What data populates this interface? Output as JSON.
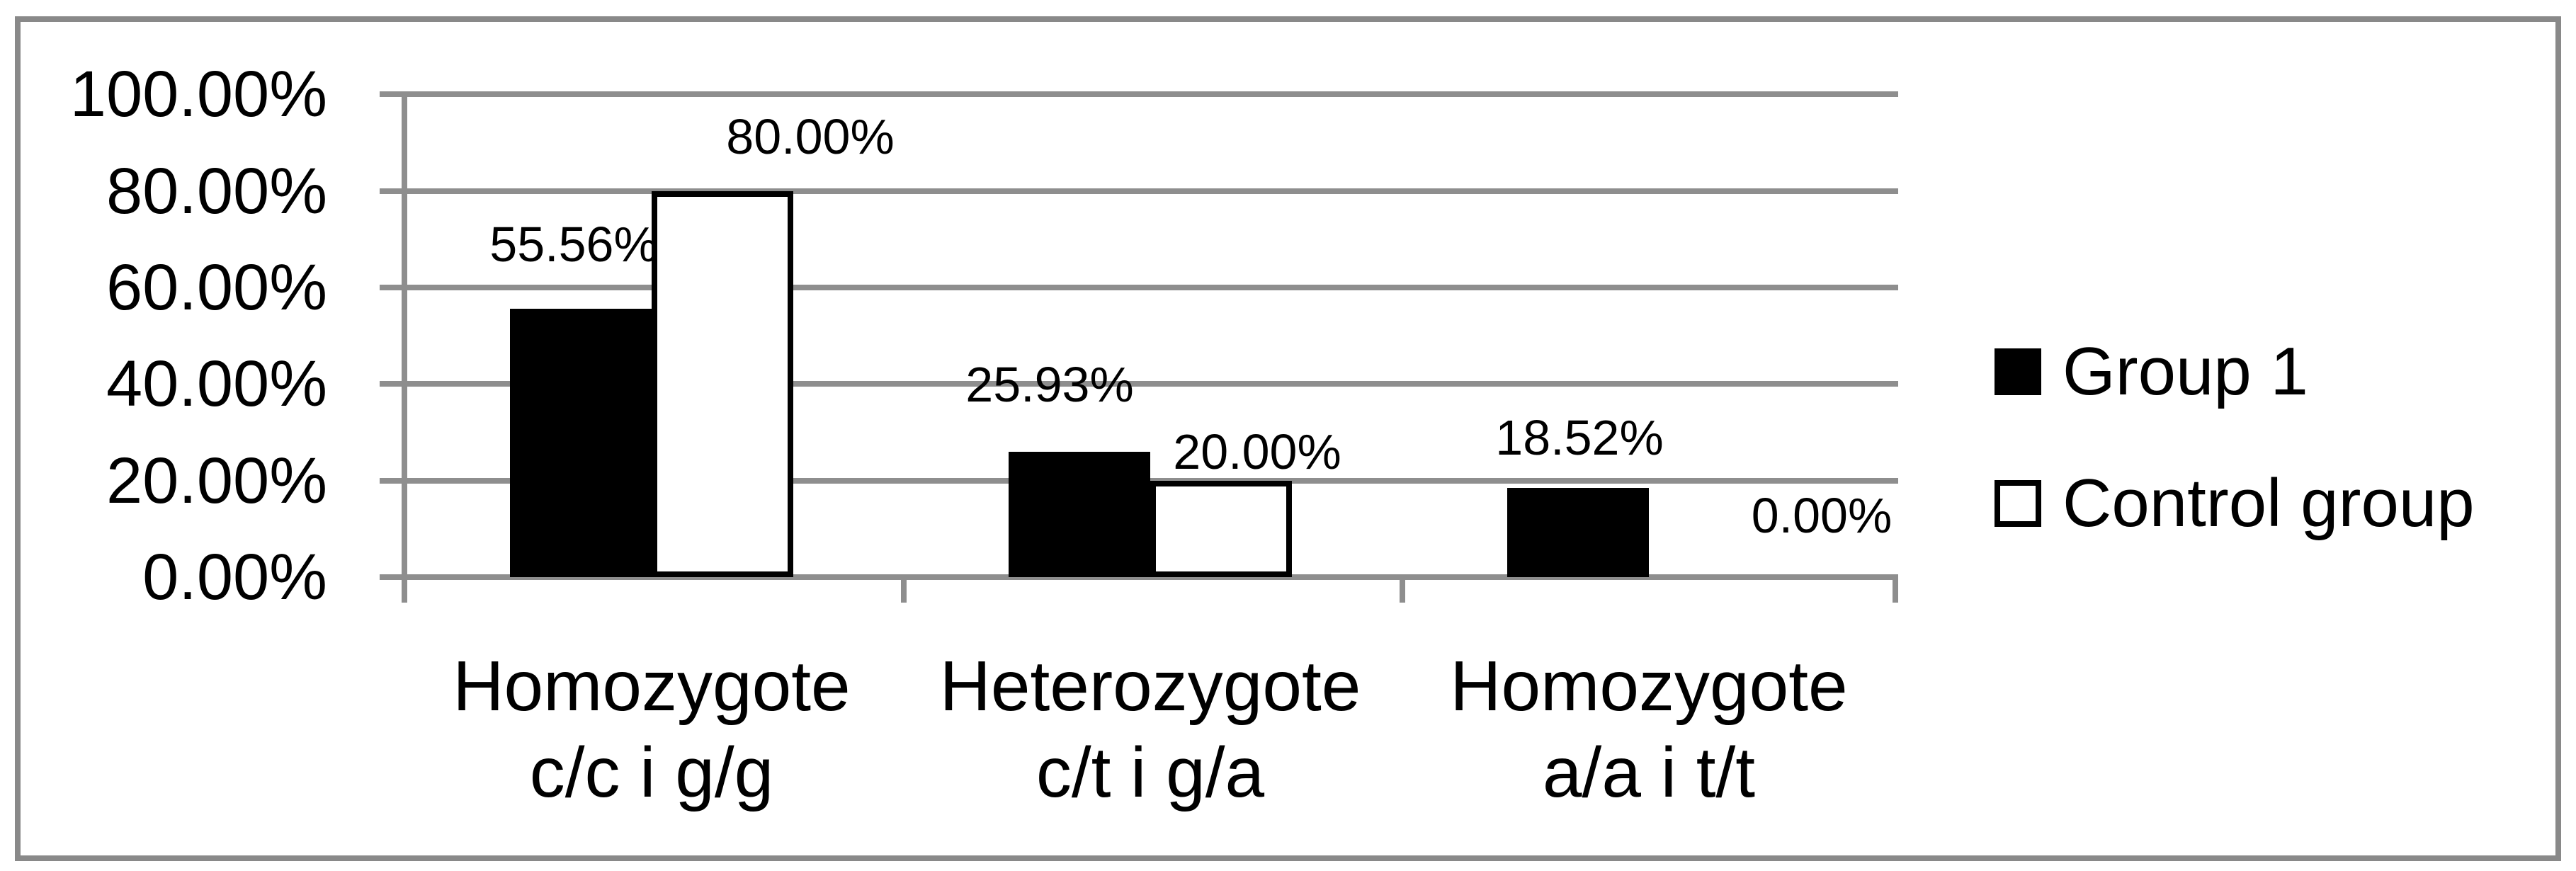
{
  "chart_data": {
    "type": "bar",
    "title": "",
    "categories": [
      {
        "line1": "Homozygote",
        "line2": "c/c i g/g"
      },
      {
        "line1": "Heterozygote",
        "line2": "c/t i g/a"
      },
      {
        "line1": "Homozygote",
        "line2": "a/a i t/t"
      }
    ],
    "series": [
      {
        "name": "Group 1",
        "values": [
          55.56,
          25.93,
          18.52
        ],
        "data_labels": [
          "55.56%",
          "25.93%",
          "18.52%"
        ],
        "fill": "#000000"
      },
      {
        "name": "Control group",
        "values": [
          80.0,
          20.0,
          0.0
        ],
        "data_labels": [
          "80.00%",
          "20.00%",
          "0.00%"
        ],
        "fill": "#ffffff",
        "border": "#000000"
      }
    ],
    "y_axis": {
      "min": 0,
      "max": 100,
      "step": 20,
      "tick_labels": [
        "0.00%",
        "20.00%",
        "40.00%",
        "60.00%",
        "80.00%",
        "100.00%"
      ]
    },
    "legend": {
      "position": "right",
      "entries": [
        "Group 1",
        "Control group"
      ]
    },
    "grid": true,
    "ylim": [
      0,
      100
    ],
    "colors": {
      "bar_black": "#000000",
      "bar_white": "#ffffff",
      "bar_outline": "#000000",
      "gridline": "#8e8e8e",
      "axis": "#8e8e8e",
      "frame_border": "#898989",
      "background": "#ffffff",
      "text": "#000000"
    }
  }
}
